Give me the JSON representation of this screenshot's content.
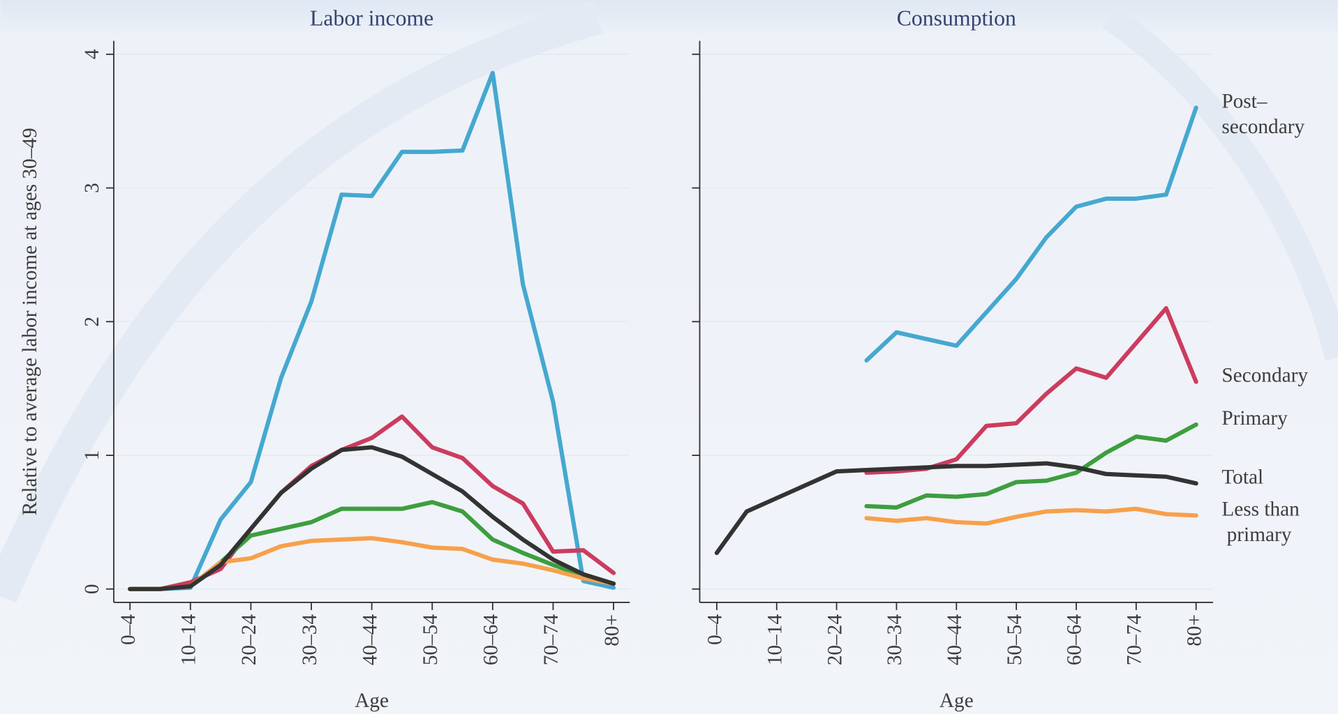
{
  "chart_data": [
    {
      "type": "line",
      "title": "Labor income",
      "xlabel": "Age",
      "ylabel": "Relative to average labor income at ages 30–49",
      "categories": [
        "0–4",
        null,
        "10–14",
        null,
        "20–24",
        null,
        "30–34",
        null,
        "40–44",
        null,
        "50–54",
        null,
        "60–64",
        null,
        "70–74",
        null,
        "80+"
      ],
      "ylim": [
        -0.1,
        4.1
      ],
      "yticks": [
        0,
        1,
        2,
        3,
        4
      ],
      "grid": true,
      "series": [
        {
          "name": "Post–secondary",
          "color": "#45a8d0",
          "values": [
            0,
            0,
            0.01,
            0.52,
            0.8,
            1.58,
            2.15,
            2.95,
            2.94,
            3.27,
            3.27,
            3.28,
            3.86,
            2.28,
            1.4,
            0.06,
            0.01
          ]
        },
        {
          "name": "Secondary",
          "color": "#cc3c5e",
          "values": [
            0,
            0,
            0.05,
            0.15,
            0.45,
            0.72,
            0.92,
            1.04,
            1.13,
            1.29,
            1.06,
            0.98,
            0.77,
            0.64,
            0.28,
            0.29,
            0.12
          ]
        },
        {
          "name": "Primary",
          "color": "#3d9e3f",
          "values": [
            0,
            0,
            0.02,
            0.2,
            0.4,
            0.45,
            0.5,
            0.6,
            0.6,
            0.6,
            0.65,
            0.58,
            0.37,
            0.27,
            0.18,
            0.1,
            0.04
          ]
        },
        {
          "name": "Less than primary",
          "color": "#f7a04a",
          "values": [
            0,
            0,
            0.02,
            0.2,
            0.23,
            0.32,
            0.36,
            0.37,
            0.38,
            0.35,
            0.31,
            0.3,
            0.22,
            0.19,
            0.14,
            0.08,
            0.04
          ]
        },
        {
          "name": "Total",
          "color": "#333333",
          "values": [
            0,
            0,
            0.02,
            0.18,
            0.45,
            0.72,
            0.9,
            1.04,
            1.06,
            0.99,
            0.86,
            0.73,
            0.54,
            0.37,
            0.22,
            0.11,
            0.04
          ]
        }
      ]
    },
    {
      "type": "line",
      "title": "Consumption",
      "xlabel": "Age",
      "legend": "right",
      "categories": [
        "0–4",
        null,
        "10–14",
        null,
        "20–24",
        null,
        "30–34",
        null,
        "40–44",
        null,
        "50–54",
        null,
        "60–64",
        null,
        "70–74",
        null,
        "80+"
      ],
      "ylim": [
        -0.1,
        4.1
      ],
      "yticks": [
        0,
        1,
        2,
        3,
        4
      ],
      "grid": true,
      "series": [
        {
          "name": "Post–secondary",
          "color": "#45a8d0",
          "values": [
            null,
            null,
            null,
            null,
            null,
            1.71,
            1.92,
            1.87,
            1.82,
            2.07,
            2.32,
            2.63,
            2.86,
            2.92,
            2.92,
            2.95,
            3.6
          ]
        },
        {
          "name": "Secondary",
          "color": "#cc3c5e",
          "values": [
            null,
            null,
            null,
            null,
            null,
            0.87,
            0.88,
            0.9,
            0.97,
            1.22,
            1.24,
            1.46,
            1.65,
            1.58,
            1.84,
            2.1,
            1.55
          ]
        },
        {
          "name": "Primary",
          "color": "#3d9e3f",
          "values": [
            null,
            null,
            null,
            null,
            null,
            0.62,
            0.61,
            0.7,
            0.69,
            0.71,
            0.8,
            0.81,
            0.87,
            1.02,
            1.14,
            1.11,
            1.23
          ]
        },
        {
          "name": "Less than primary",
          "color": "#f7a04a",
          "values": [
            null,
            null,
            null,
            null,
            null,
            0.53,
            0.51,
            0.53,
            0.5,
            0.49,
            0.54,
            0.58,
            0.59,
            0.58,
            0.6,
            0.56,
            0.55
          ]
        },
        {
          "name": "Total",
          "color": "#333333",
          "values": [
            0.27,
            0.58,
            0.68,
            0.78,
            0.88,
            0.89,
            0.9,
            0.91,
            0.92,
            0.92,
            0.93,
            0.94,
            0.91,
            0.86,
            0.85,
            0.84,
            0.79
          ]
        }
      ]
    }
  ]
}
